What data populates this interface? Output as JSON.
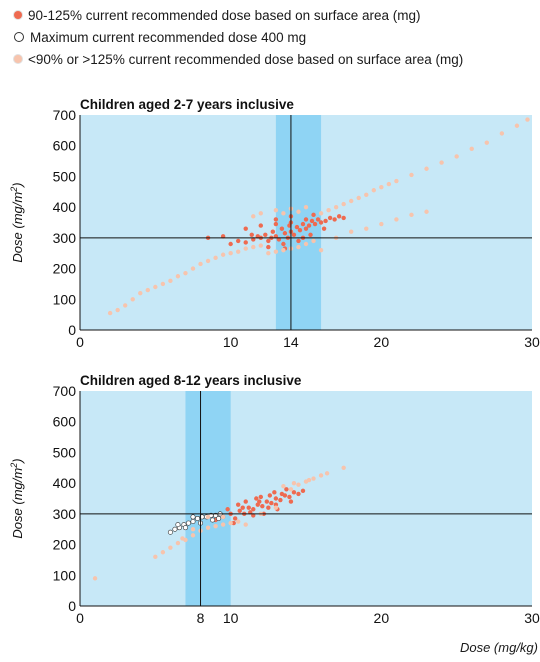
{
  "legend": [
    {
      "label": "90-125% current recommended dose based on surface area (mg)",
      "color": "#ee6a50",
      "hollow": false
    },
    {
      "label": "Maximum current recommended dose 400 mg",
      "color": "#ffffff",
      "hollow": true
    },
    {
      "label": "<90% or >125% current recommended dose based on surface area (mg)",
      "color": "#f7c4ad",
      "hollow": false
    }
  ],
  "colors": {
    "background": "#c7e8f7",
    "band": "#8fd4f4",
    "in_range": "#ee6a50",
    "max_dose": "#ffffff",
    "out_range": "#f7c4ad"
  },
  "x_axis_label": "Dose (mg/kg)",
  "chart_data": [
    {
      "type": "scatter",
      "title": "Children aged 2-7 years inclusive",
      "ylabel": "Dose (mg/m2)",
      "xlim": [
        0,
        30
      ],
      "ylim": [
        0,
        700
      ],
      "xticks": [
        0,
        10,
        14,
        20,
        30
      ],
      "yticks": [
        0,
        100,
        200,
        300,
        400,
        500,
        600,
        700
      ],
      "grid": false,
      "band_x": [
        13,
        16
      ],
      "reference_lines": {
        "x": 14,
        "y": 300
      },
      "series": [
        {
          "name": "90-125% current recommended dose based on surface area (mg)",
          "color": "#ee6a50",
          "points": [
            [
              8.5,
              300
            ],
            [
              9.5,
              305
            ],
            [
              10,
              280
            ],
            [
              10.5,
              290
            ],
            [
              11,
              285
            ],
            [
              11.5,
              295
            ],
            [
              11.8,
              305
            ],
            [
              12,
              300
            ],
            [
              12.3,
              310
            ],
            [
              12.5,
              290
            ],
            [
              12.8,
              320
            ],
            [
              13,
              305
            ],
            [
              13.2,
              295
            ],
            [
              13.4,
              330
            ],
            [
              13.6,
              315
            ],
            [
              13.8,
              300
            ],
            [
              14,
              320
            ],
            [
              14.2,
              310
            ],
            [
              14.4,
              335
            ],
            [
              14.6,
              325
            ],
            [
              14.8,
              345
            ],
            [
              15,
              330
            ],
            [
              15.2,
              340
            ],
            [
              15.4,
              355
            ],
            [
              15.6,
              345
            ],
            [
              15.8,
              360
            ],
            [
              16,
              350
            ],
            [
              16.3,
              355
            ],
            [
              16.6,
              365
            ],
            [
              16.9,
              360
            ],
            [
              17.2,
              370
            ],
            [
              17.5,
              365
            ],
            [
              11,
              330
            ],
            [
              12,
              340
            ],
            [
              13,
              345
            ],
            [
              14,
              350
            ],
            [
              15,
              360
            ],
            [
              12.5,
              270
            ],
            [
              13.5,
              280
            ],
            [
              14.5,
              290
            ],
            [
              13,
              360
            ],
            [
              14,
              370
            ],
            [
              15.5,
              375
            ],
            [
              14.8,
              300
            ],
            [
              13.6,
              265
            ],
            [
              12.7,
              300
            ],
            [
              13.9,
              340
            ],
            [
              15.3,
              310
            ],
            [
              16.2,
              330
            ],
            [
              11.4,
              310
            ]
          ]
        },
        {
          "name": "<90% or >125% current recommended dose based on surface area (mg)",
          "color": "#f7c4ad",
          "points": [
            [
              2,
              55
            ],
            [
              2.5,
              65
            ],
            [
              3,
              80
            ],
            [
              3.5,
              100
            ],
            [
              4,
              120
            ],
            [
              4.5,
              130
            ],
            [
              5,
              140
            ],
            [
              5.5,
              150
            ],
            [
              6,
              160
            ],
            [
              6.5,
              175
            ],
            [
              7,
              185
            ],
            [
              7.5,
              200
            ],
            [
              8,
              215
            ],
            [
              8.5,
              225
            ],
            [
              9,
              235
            ],
            [
              9.5,
              245
            ],
            [
              10,
              250
            ],
            [
              10.5,
              255
            ],
            [
              11,
              265
            ],
            [
              11.5,
              270
            ],
            [
              12,
              275
            ],
            [
              12.5,
              250
            ],
            [
              13,
              255
            ],
            [
              13.5,
              260
            ],
            [
              14,
              265
            ],
            [
              14.5,
              270
            ],
            [
              15,
              280
            ],
            [
              15.5,
              290
            ],
            [
              16,
              380
            ],
            [
              16.5,
              390
            ],
            [
              17,
              400
            ],
            [
              17.5,
              410
            ],
            [
              18,
              420
            ],
            [
              18.5,
              430
            ],
            [
              19,
              440
            ],
            [
              19.5,
              455
            ],
            [
              20,
              465
            ],
            [
              20.5,
              475
            ],
            [
              21,
              485
            ],
            [
              22,
              505
            ],
            [
              23,
              525
            ],
            [
              24,
              545
            ],
            [
              25,
              565
            ],
            [
              26,
              590
            ],
            [
              27,
              610
            ],
            [
              28,
              640
            ],
            [
              29,
              665
            ],
            [
              29.7,
              685
            ],
            [
              13,
              390
            ],
            [
              14,
              395
            ],
            [
              15,
              400
            ],
            [
              14.5,
              385
            ],
            [
              13.5,
              380
            ],
            [
              12,
              380
            ],
            [
              11.5,
              370
            ],
            [
              16,
              260
            ],
            [
              17,
              300
            ],
            [
              18,
              320
            ],
            [
              19,
              330
            ],
            [
              20,
              345
            ],
            [
              21,
              360
            ],
            [
              22,
              375
            ],
            [
              23,
              385
            ]
          ]
        }
      ]
    },
    {
      "type": "scatter",
      "title": "Children aged 8-12 years inclusive",
      "ylabel": "Dose (mg/m2)",
      "xlim": [
        0,
        30
      ],
      "ylim": [
        0,
        700
      ],
      "xticks": [
        0,
        8,
        10,
        20,
        30
      ],
      "yticks": [
        0,
        100,
        200,
        300,
        400,
        500,
        600,
        700
      ],
      "grid": false,
      "band_x": [
        7,
        10
      ],
      "reference_lines": {
        "x": 8,
        "y": 300
      },
      "series": [
        {
          "name": "90-125% current recommended dose based on surface area (mg)",
          "color": "#ee6a50",
          "points": [
            [
              9,
              280
            ],
            [
              9.5,
              290
            ],
            [
              10,
              300
            ],
            [
              10.3,
              285
            ],
            [
              10.6,
              310
            ],
            [
              10.9,
              300
            ],
            [
              11.2,
              320
            ],
            [
              11.5,
              315
            ],
            [
              11.8,
              330
            ],
            [
              12.1,
              325
            ],
            [
              12.4,
              340
            ],
            [
              12.7,
              335
            ],
            [
              13,
              350
            ],
            [
              13.3,
              345
            ],
            [
              13.6,
              360
            ],
            [
              13.9,
              355
            ],
            [
              14.2,
              370
            ],
            [
              14.5,
              365
            ],
            [
              10.5,
              330
            ],
            [
              11,
              340
            ],
            [
              12,
              355
            ],
            [
              12.5,
              320
            ],
            [
              11.5,
              295
            ],
            [
              13,
              330
            ],
            [
              14,
              340
            ],
            [
              9.8,
              315
            ],
            [
              10.2,
              270
            ],
            [
              11.7,
              350
            ],
            [
              12.9,
              370
            ],
            [
              13.7,
              380
            ],
            [
              10.8,
              320
            ],
            [
              11.3,
              305
            ],
            [
              12.2,
              300
            ],
            [
              13.4,
              365
            ],
            [
              14.8,
              375
            ],
            [
              11.9,
              340
            ],
            [
              12.6,
              360
            ],
            [
              13.1,
              315
            ]
          ]
        },
        {
          "name": "Maximum current recommended dose 400 mg",
          "color": "#ffffff",
          "points": [
            [
              6,
              240
            ],
            [
              6.3,
              250
            ],
            [
              6.6,
              255
            ],
            [
              6.9,
              265
            ],
            [
              7.2,
              270
            ],
            [
              7.5,
              275
            ],
            [
              7.8,
              285
            ],
            [
              8.1,
              290
            ],
            [
              8.4,
              290
            ],
            [
              8.7,
              295
            ],
            [
              9,
              295
            ],
            [
              9.3,
              300
            ],
            [
              6.5,
              265
            ],
            [
              7,
              255
            ],
            [
              7.5,
              290
            ],
            [
              8,
              270
            ],
            [
              8.8,
              280
            ],
            [
              9.2,
              285
            ]
          ]
        },
        {
          "name": "<90% or >125% current recommended dose based on surface area (mg)",
          "color": "#f7c4ad",
          "points": [
            [
              1,
              90
            ],
            [
              5,
              160
            ],
            [
              5.5,
              175
            ],
            [
              6,
              190
            ],
            [
              6.5,
              205
            ],
            [
              7,
              215
            ],
            [
              7.5,
              230
            ],
            [
              8,
              245
            ],
            [
              8.5,
              255
            ],
            [
              9,
              260
            ],
            [
              9.5,
              265
            ],
            [
              10,
              270
            ],
            [
              10.5,
              275
            ],
            [
              11,
              265
            ],
            [
              12,
              300
            ],
            [
              13,
              320
            ],
            [
              14,
              380
            ],
            [
              14.5,
              395
            ],
            [
              15,
              405
            ],
            [
              15.5,
              415
            ],
            [
              16,
              425
            ],
            [
              16.4,
              432
            ],
            [
              17.5,
              450
            ],
            [
              13.5,
              390
            ],
            [
              14.2,
              400
            ],
            [
              15.2,
              410
            ],
            [
              8.5,
              290
            ],
            [
              9.5,
              290
            ],
            [
              7.5,
              250
            ],
            [
              6.8,
              220
            ]
          ]
        }
      ]
    }
  ]
}
